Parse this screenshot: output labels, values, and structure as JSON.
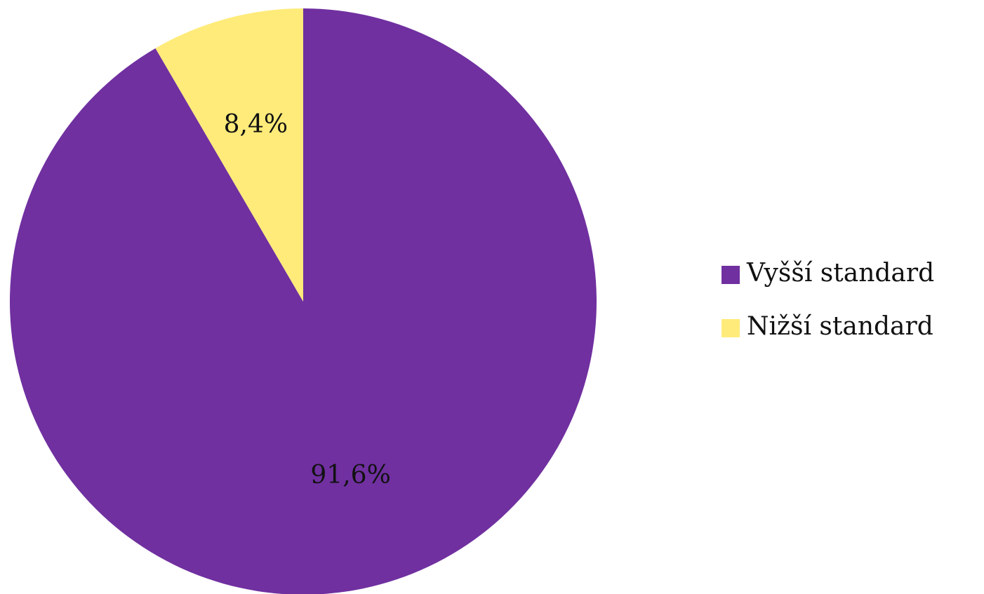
{
  "chart_data": {
    "type": "pie",
    "title": "",
    "slices": [
      {
        "label": "Vyšší standard",
        "value": 91.6,
        "value_label": "91,6%",
        "color": "#7030A0"
      },
      {
        "label": "Nižší standard",
        "value": 8.4,
        "value_label": "8,4%",
        "color": "#FFEB7A"
      }
    ],
    "start_angle_deg": 0,
    "direction": "clockwise",
    "legend": {
      "position": "right"
    }
  }
}
